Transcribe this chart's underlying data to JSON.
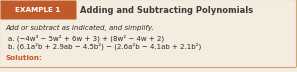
{
  "bg_color": "#f5ece0",
  "border_color": "#c8a87a",
  "header_bg": "#c05a2a",
  "header_text": "EXAMPLE 1",
  "header_text_color": "#ffffff",
  "title_text": "Adding and Subtracting Polynomials",
  "title_color": "#3a3a3a",
  "instruction": "Add or subtract as indicated, and simplify.",
  "line_a": "a. (−4w³ − 5w² + 6w + 3) + (8w² − 4w + 2)",
  "line_b": "b. (6.1a²b + 2.9ab − 4.5b²) − (2.6a²b − 4.1ab + 2.1b²)",
  "solution": "Solution:",
  "text_color": "#2a2a2a",
  "solution_color": "#c05a2a",
  "font_size_header": 5.2,
  "font_size_title": 6.0,
  "font_size_body": 5.0,
  "font_size_solution": 5.2
}
